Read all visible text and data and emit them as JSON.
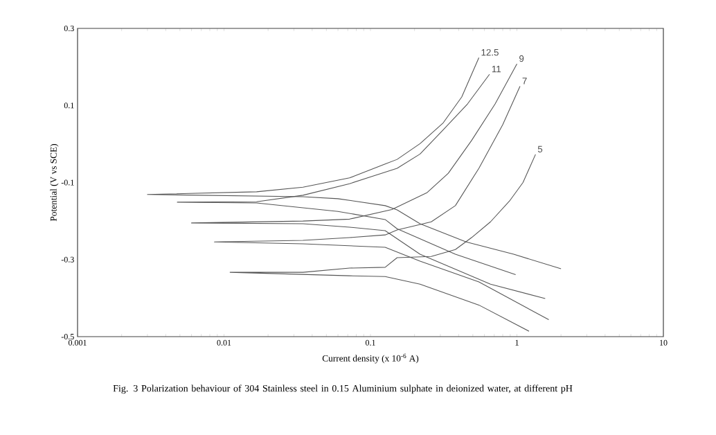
{
  "chart_data": {
    "type": "line",
    "xlabel": "Current density (x 10$^{-6}$ A)",
    "ylabel": "Potential (V vs SCE)",
    "log": "x",
    "xlim": [
      0.001,
      10
    ],
    "ylim": [
      -0.5,
      0.3
    ],
    "xticks": [
      0.001,
      0.01,
      0.1,
      1,
      10
    ],
    "yticks": [
      -0.5,
      -0.3,
      -0.1,
      0.1,
      0.3
    ],
    "grid": false,
    "marker": "none",
    "line_style": "solid",
    "series": [
      {
        "name": "12.5",
        "color": "#555555",
        "x": [
          2.0,
          0.95,
          0.45,
          0.218,
          0.152,
          0.126,
          0.06,
          0.0346,
          0.003,
          0.0167,
          0.0346,
          0.072,
          0.126,
          0.152,
          0.218,
          0.314,
          0.42,
          0.55
        ],
        "values": [
          -0.324,
          -0.286,
          -0.254,
          -0.207,
          -0.171,
          -0.16,
          -0.142,
          -0.137,
          -0.131,
          -0.124,
          -0.112,
          -0.088,
          -0.052,
          -0.04,
          0.001,
          0.055,
          0.122,
          0.224
        ]
      },
      {
        "name": "11",
        "color": "#555555",
        "x": [
          0.98,
          0.38,
          0.152,
          0.126,
          0.06,
          0.0167,
          0.0048,
          0.0167,
          0.0346,
          0.072,
          0.152,
          0.218,
          0.314,
          0.46,
          0.65
        ],
        "values": [
          -0.339,
          -0.286,
          -0.22,
          -0.196,
          -0.175,
          -0.153,
          -0.151,
          -0.15,
          -0.133,
          -0.103,
          -0.063,
          -0.026,
          0.037,
          0.104,
          0.181
        ]
      },
      {
        "name": "9",
        "color": "#555555",
        "x": [
          1.56,
          0.66,
          0.218,
          0.126,
          0.072,
          0.0346,
          0.006,
          0.0346,
          0.072,
          0.14,
          0.244,
          0.34,
          0.49,
          0.71,
          1.0
        ],
        "values": [
          -0.401,
          -0.364,
          -0.286,
          -0.225,
          -0.216,
          -0.207,
          -0.205,
          -0.2,
          -0.195,
          -0.17,
          -0.126,
          -0.076,
          0.009,
          0.104,
          0.208
        ]
      },
      {
        "name": "7",
        "color": "#555555",
        "x": [
          1.65,
          0.55,
          0.218,
          0.126,
          0.0346,
          0.0086,
          0.0346,
          0.072,
          0.126,
          0.152,
          0.26,
          0.38,
          0.55,
          0.8,
          1.05
        ],
        "values": [
          -0.456,
          -0.358,
          -0.304,
          -0.268,
          -0.259,
          -0.254,
          -0.25,
          -0.243,
          -0.236,
          -0.223,
          -0.202,
          -0.16,
          -0.063,
          0.05,
          0.15
        ]
      },
      {
        "name": "5",
        "color": "#555555",
        "x": [
          1.21,
          0.55,
          0.218,
          0.126,
          0.072,
          0.011,
          0.0346,
          0.072,
          0.126,
          0.152,
          0.26,
          0.38,
          0.49,
          0.66,
          0.89,
          1.1,
          1.34
        ],
        "values": [
          -0.486,
          -0.418,
          -0.364,
          -0.344,
          -0.342,
          -0.333,
          -0.333,
          -0.322,
          -0.32,
          -0.295,
          -0.292,
          -0.274,
          -0.243,
          -0.202,
          -0.148,
          -0.1,
          -0.027
        ]
      }
    ],
    "annotations": [
      "Fig. 3 Polarization behaviour of 304 Stainless steel in 0.15 Aluminium sulphate in deionized water, at different pH"
    ]
  }
}
